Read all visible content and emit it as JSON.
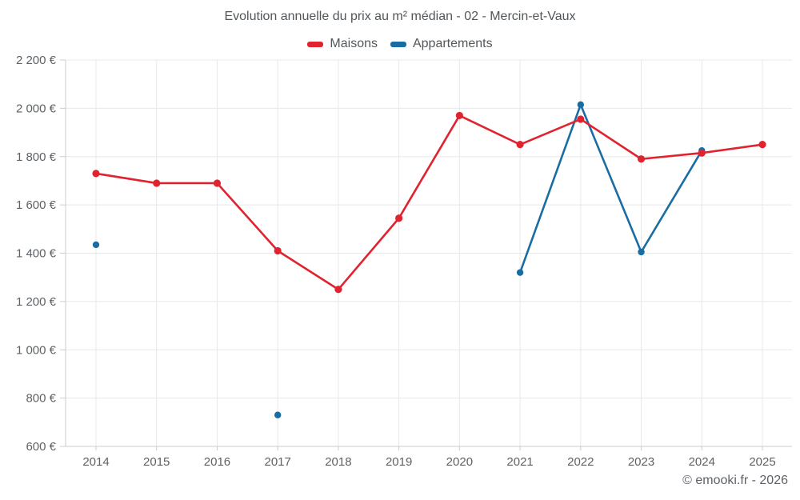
{
  "chart_data": {
    "type": "line",
    "title": "Evolution annuelle du prix au m² médian - 02 - Mercin-et-Vaux",
    "categories": [
      "2014",
      "2015",
      "2016",
      "2017",
      "2018",
      "2019",
      "2020",
      "2021",
      "2022",
      "2023",
      "2024",
      "2025"
    ],
    "series": [
      {
        "name": "Maisons",
        "color": "#e0242f",
        "values": [
          1730,
          1690,
          1690,
          1410,
          1250,
          1545,
          1970,
          1850,
          1955,
          1790,
          1815,
          1850
        ]
      },
      {
        "name": "Appartements",
        "color": "#1a6da3",
        "values": [
          1435,
          null,
          null,
          730,
          null,
          null,
          null,
          1320,
          2015,
          1405,
          1825,
          null
        ]
      }
    ],
    "xlabel": "",
    "ylabel": "",
    "ylim": [
      600,
      2200
    ],
    "y_ticks": [
      600,
      800,
      1000,
      1200,
      1400,
      1600,
      1800,
      2000,
      2200
    ],
    "y_tick_labels": [
      "600 €",
      "800 €",
      "1 000 €",
      "1 200 €",
      "1 400 €",
      "1 600 €",
      "1 800 €",
      "2 000 €",
      "2 200 €"
    ],
    "grid": true,
    "legend_position": "top"
  },
  "colors": {
    "grid": "#e8e8e8",
    "axis": "#cccccc",
    "axis_text": "#5e6266",
    "title_text": "#53575a"
  },
  "footer": {
    "credit": "© emooki.fr - 2026"
  }
}
